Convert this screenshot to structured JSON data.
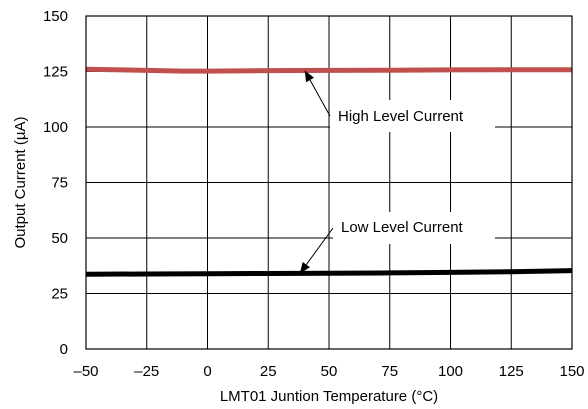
{
  "chart_data": {
    "type": "line",
    "title": "",
    "xlabel": "LMT01 Juntion Temperature (°C)",
    "ylabel": "Output Current (µA)",
    "xlim": [
      -50,
      150
    ],
    "ylim": [
      0,
      150
    ],
    "grid": true,
    "legend": "none",
    "x_ticks": [
      "–50",
      "–25",
      "0",
      "25",
      "50",
      "75",
      "100",
      "125",
      "150"
    ],
    "y_ticks": [
      "0",
      "25",
      "50",
      "75",
      "100",
      "125",
      "150"
    ],
    "series": [
      {
        "color": "#c0504d",
        "x": [
          -50,
          -25,
          -10,
          0,
          25,
          50,
          75,
          100,
          125,
          150
        ],
        "y": [
          126,
          125.5,
          125.2,
          125.2,
          125.4,
          125.5,
          125.6,
          125.7,
          125.8,
          125.8
        ]
      },
      {
        "color": "#000000",
        "x": [
          -50,
          -25,
          0,
          25,
          50,
          75,
          100,
          125,
          150
        ],
        "y": [
          33.7,
          33.8,
          33.9,
          34.0,
          34.1,
          34.3,
          34.5,
          34.8,
          35.3
        ]
      }
    ],
    "annotations": [
      {
        "text": "High Level Current",
        "arrow_to": [
          40,
          125.5
        ]
      },
      {
        "text": "Low Level Current",
        "arrow_to": [
          38,
          34.0
        ]
      }
    ]
  },
  "colors": {
    "grid": "#000000",
    "high_series": "#c0504d",
    "low_series": "#000000"
  }
}
